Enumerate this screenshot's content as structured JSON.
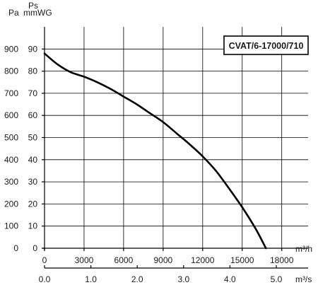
{
  "chart_data": {
    "type": "line",
    "title": "CVAT/6-17000/710",
    "left_axis_label": "Pa",
    "right_axis_label_top": "Ps",
    "right_axis_label_bottom": "mmWG",
    "y_pa_ticks": [
      "0",
      "100",
      "200",
      "300",
      "400",
      "500",
      "600",
      "700",
      "800",
      "900"
    ],
    "y_mmwg_ticks": [
      "0",
      "10",
      "20",
      "30",
      "40",
      "50",
      "60",
      "70",
      "80",
      "90"
    ],
    "x_m3h_unit": "m³/h",
    "x_m3h_ticks": [
      "0",
      "3000",
      "6000",
      "9000",
      "12000",
      "15000",
      "18000"
    ],
    "x_m3s_unit": "m³/s",
    "x_m3s_ticks": [
      "0.0",
      "1.0",
      "2.0",
      "3.0",
      "4.0",
      "5.0"
    ],
    "xlim_m3h": [
      0,
      20000
    ],
    "ylim_pa": [
      0,
      1000
    ],
    "grid": true,
    "series": [
      {
        "x_m3h": [
          0,
          1000,
          2000,
          3000,
          4000,
          5000,
          6000,
          7000,
          8000,
          9000,
          10000,
          11000,
          12000,
          13000,
          14000,
          15000,
          16000,
          16800
        ],
        "y_pa": [
          880,
          830,
          795,
          775,
          750,
          720,
          685,
          650,
          610,
          570,
          520,
          470,
          415,
          350,
          270,
          185,
          90,
          0
        ]
      }
    ]
  }
}
